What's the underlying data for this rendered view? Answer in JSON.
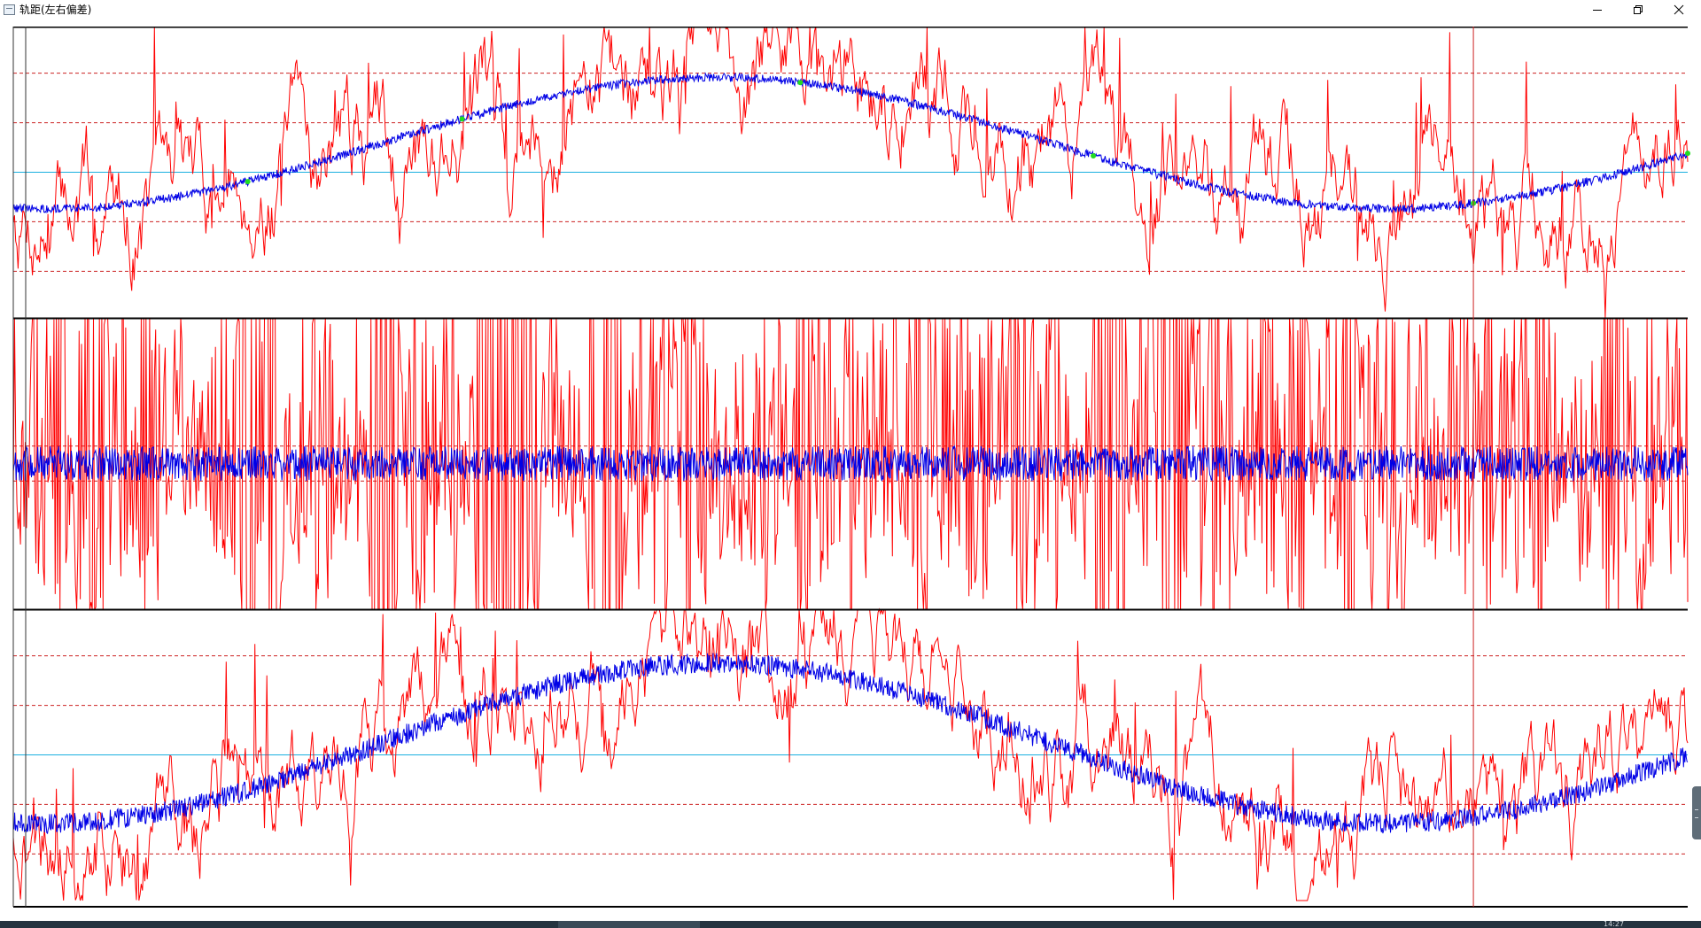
{
  "window": {
    "title": "轨距(左右偏差)",
    "controls": {
      "minimize": "minimize-icon",
      "restore": "restore-icon",
      "close": "close-icon"
    }
  },
  "colors": {
    "measured": "#ff0000",
    "filtered": "#0000e6",
    "reference": "#1ab0e0",
    "limit": "#cc2222",
    "marker": "#22dd22",
    "cursor": "#cc2222",
    "frame": "#000000"
  },
  "plot": {
    "x_range": [
      0,
      1.0
    ],
    "cursor_x": 0.872,
    "panels": [
      {
        "id": "upper",
        "y_range": [
          -1,
          1
        ],
        "reference_line": 0,
        "limit_lines": [
          0.68,
          0.34,
          -0.34,
          -0.68
        ],
        "filtered_curve": {
          "shape": "sine",
          "offset": 0.2,
          "amplitude": 0.45,
          "noise": 0.03
        },
        "measured_curve": {
          "amplitude": 0.75,
          "noise": 0.25,
          "seed": 7
        },
        "markers": [
          0.14,
          0.268,
          0.47,
          0.645,
          0.872,
          1.0
        ]
      },
      {
        "id": "middle",
        "y_range": [
          -1,
          1
        ],
        "reference_line": null,
        "limit_lines": [
          -0.12,
          0.12
        ],
        "filtered_curve": {
          "shape": "flat",
          "offset": 0,
          "amplitude": 0,
          "noise": 0.12
        },
        "measured_curve": {
          "amplitude": 0.55,
          "noise": 0.55,
          "seed": 13
        },
        "markers": []
      },
      {
        "id": "lower",
        "y_range": [
          -1,
          1
        ],
        "reference_line": 0,
        "limit_lines": [
          1.0,
          0.68,
          0.34,
          -0.34,
          -0.68
        ],
        "filtered_curve": {
          "shape": "sine",
          "offset": 0.08,
          "amplitude": 0.55,
          "noise": 0.07
        },
        "measured_curve": {
          "amplitude": 0.75,
          "noise": 0.25,
          "seed": 21
        },
        "markers": []
      }
    ]
  },
  "taskbar": {
    "clock": "14:27"
  }
}
